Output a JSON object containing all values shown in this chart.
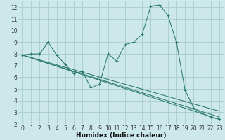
{
  "title": "",
  "xlabel": "Humidex (Indice chaleur)",
  "bg_color": "#cce8ea",
  "grid_color": "#aacccc",
  "line_color": "#2a7a6a",
  "xlim": [
    -0.5,
    23.5
  ],
  "ylim": [
    2,
    12.5
  ],
  "xticks": [
    0,
    1,
    2,
    3,
    4,
    5,
    6,
    7,
    8,
    9,
    10,
    11,
    12,
    13,
    14,
    15,
    16,
    17,
    18,
    19,
    20,
    21,
    22,
    23
  ],
  "yticks": [
    2,
    3,
    4,
    5,
    6,
    7,
    8,
    9,
    10,
    11,
    12
  ],
  "main_x": [
    0,
    1,
    2,
    3,
    4,
    5,
    6,
    7,
    8,
    9,
    10,
    11,
    12,
    13,
    14,
    15,
    16,
    17,
    18,
    19,
    20,
    21,
    22,
    23
  ],
  "main_y": [
    7.9,
    8.0,
    8.0,
    9.0,
    7.9,
    7.1,
    6.3,
    6.5,
    5.1,
    5.4,
    8.0,
    7.4,
    8.8,
    9.0,
    9.7,
    12.1,
    12.2,
    11.3,
    9.0,
    4.9,
    3.4,
    2.9,
    2.6,
    2.4
  ],
  "trend_lines": [
    {
      "x": [
        0,
        23
      ],
      "y": [
        7.9,
        2.4
      ]
    },
    {
      "x": [
        0,
        23
      ],
      "y": [
        7.9,
        2.6
      ]
    },
    {
      "x": [
        0,
        23
      ],
      "y": [
        7.9,
        3.1
      ]
    }
  ],
  "tick_fontsize": 5.5,
  "xlabel_fontsize": 6.5
}
